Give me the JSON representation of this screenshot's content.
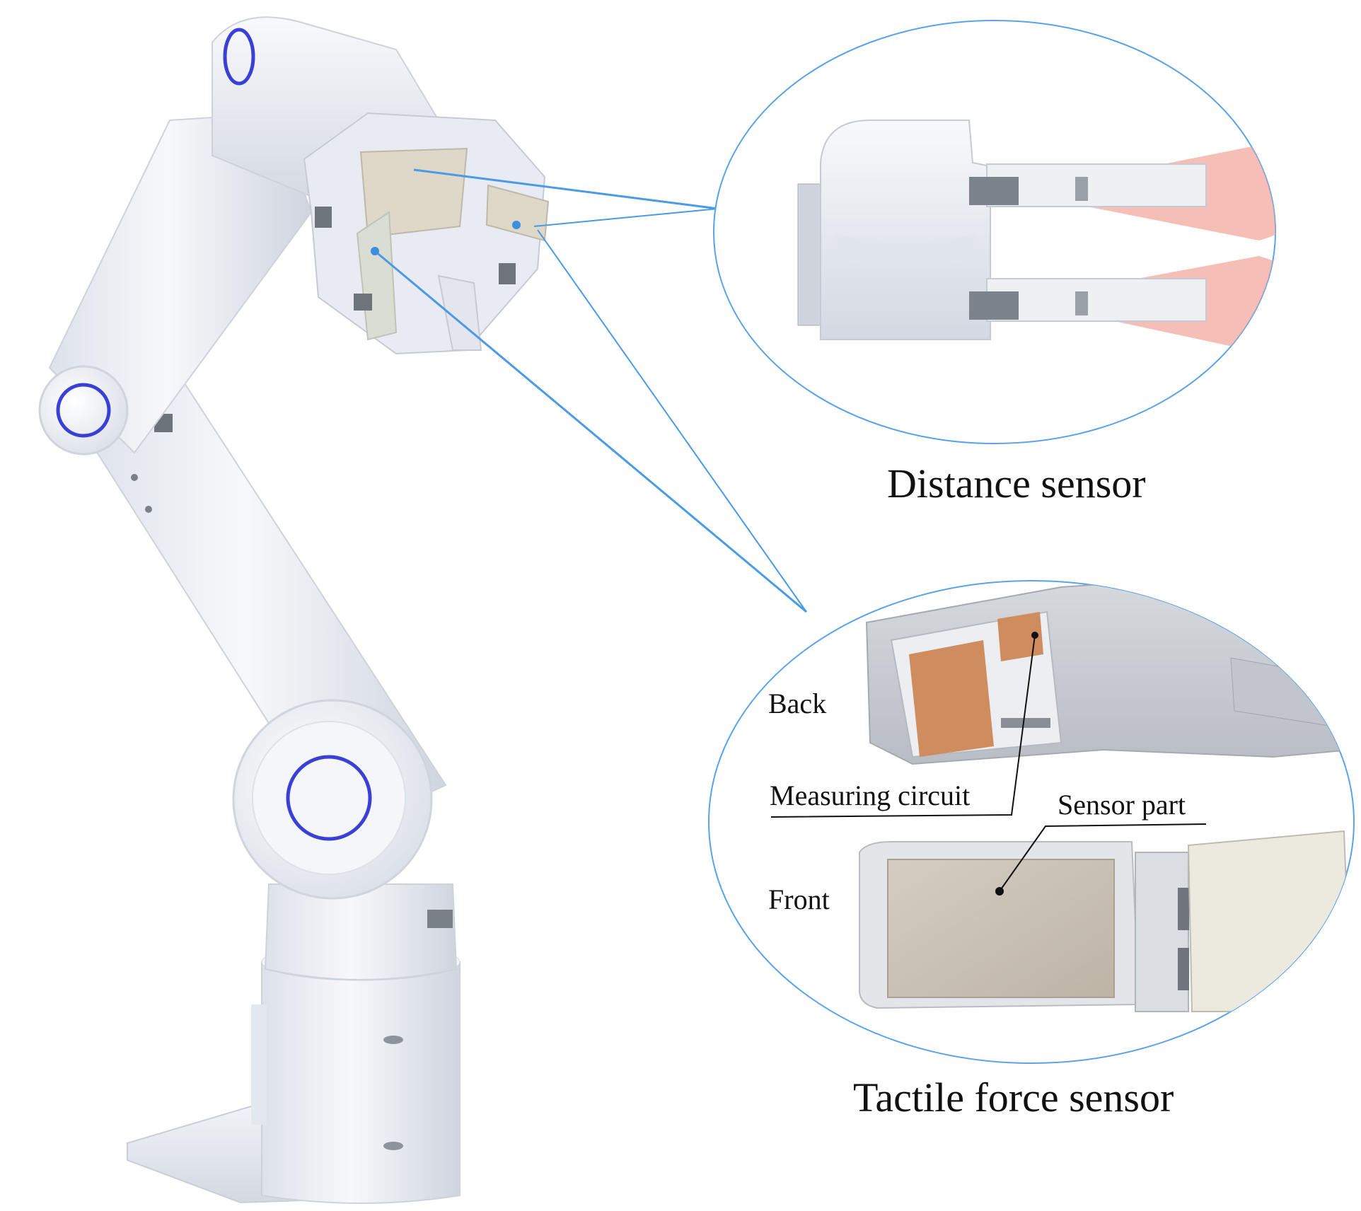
{
  "captions": {
    "distance_sensor": "Distance sensor",
    "tactile_force_sensor": "Tactile force sensor"
  },
  "callouts": {
    "back": "Back",
    "front": "Front",
    "measuring_circuit": "Measuring circuit",
    "sensor_part": "Sensor part"
  },
  "colors": {
    "leader_line": "#4a9ae6",
    "sensor_dot": "#3b8fe0",
    "joint_ring": "#3a3fd6",
    "robot_body": "#eef1f6",
    "beam": "#f2a9a0",
    "copper_pad": "#cf8c5e",
    "sensor_pad": "#c8bfb2"
  }
}
